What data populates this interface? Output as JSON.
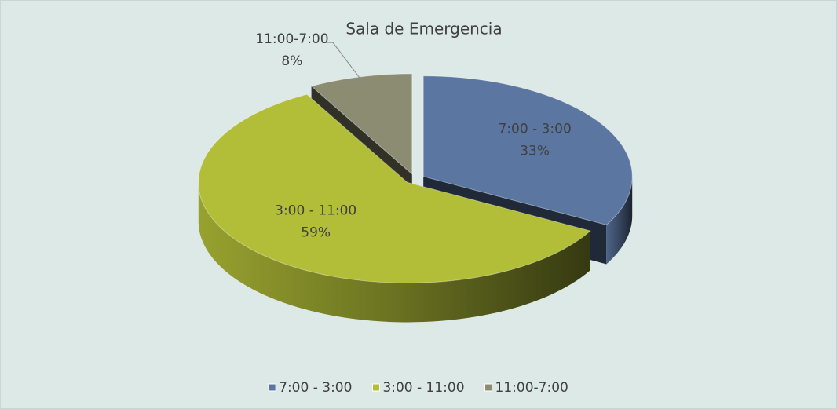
{
  "chart_data": {
    "type": "pie",
    "title": "Sala de Emergencia",
    "categories": [
      "7:00 - 3:00",
      "3:00 - 11:00",
      "11:00-7:00"
    ],
    "values": [
      33,
      59,
      8
    ],
    "value_labels": [
      "33%",
      "59%",
      "8%"
    ],
    "colors": [
      "#5b76a0",
      "#b2be37",
      "#8c8c73"
    ],
    "legend": "bottom",
    "three_d": true,
    "exploded": true
  }
}
